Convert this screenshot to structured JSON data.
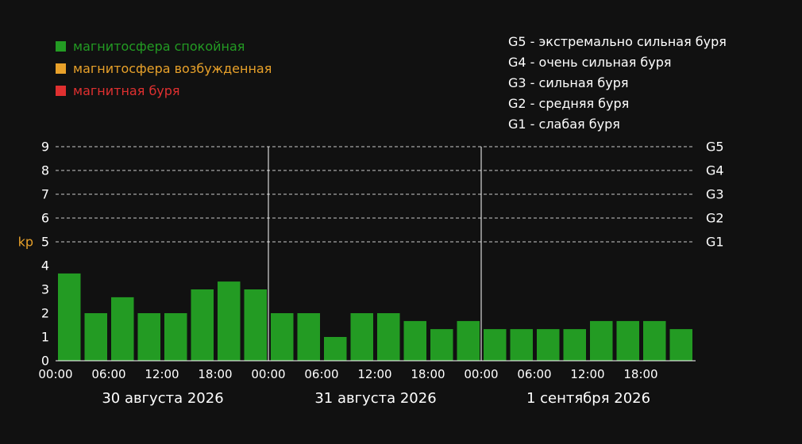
{
  "legend": {
    "items": [
      {
        "label": "магнитосфера спокойная",
        "color": "#239b23"
      },
      {
        "label": "магнитосфера возбужденная",
        "color": "#e8a12a"
      },
      {
        "label": "магнитная буря",
        "color": "#e03030"
      }
    ],
    "storm_levels": [
      "G5 - экстремально сильная буря",
      "G4 - очень сильная буря",
      "G3 - сильная буря",
      "G2 - средняя буря",
      "G1 - слабая буря"
    ]
  },
  "chart_data": {
    "type": "bar",
    "ylabel": "kp",
    "ylim": [
      0,
      9
    ],
    "yticks": [
      0,
      1,
      2,
      3,
      4,
      5,
      6,
      7,
      8,
      9
    ],
    "right_axis_labels": [
      {
        "value": 5,
        "label": "G1"
      },
      {
        "value": 6,
        "label": "G2"
      },
      {
        "value": 7,
        "label": "G3"
      },
      {
        "value": 8,
        "label": "G4"
      },
      {
        "value": 9,
        "label": "G5"
      }
    ],
    "grid": "dashed horizontal at kp 5-9",
    "x_tick_labels": [
      "00:00",
      "06:00",
      "12:00",
      "18:00",
      "00:00",
      "06:00",
      "12:00",
      "18:00",
      "00:00",
      "06:00",
      "12:00",
      "18:00"
    ],
    "days": [
      "30 августа 2026",
      "31 августа 2026",
      "1 сентября 2026"
    ],
    "bar_color": "#239b23",
    "values": [
      3.67,
      2,
      2.67,
      2,
      2,
      3,
      3.33,
      3,
      2,
      2,
      1,
      2,
      2,
      1.67,
      1.33,
      1.67,
      1.33,
      1.33,
      1.33,
      1.33,
      1.67,
      1.67,
      1.67,
      1.33
    ]
  }
}
